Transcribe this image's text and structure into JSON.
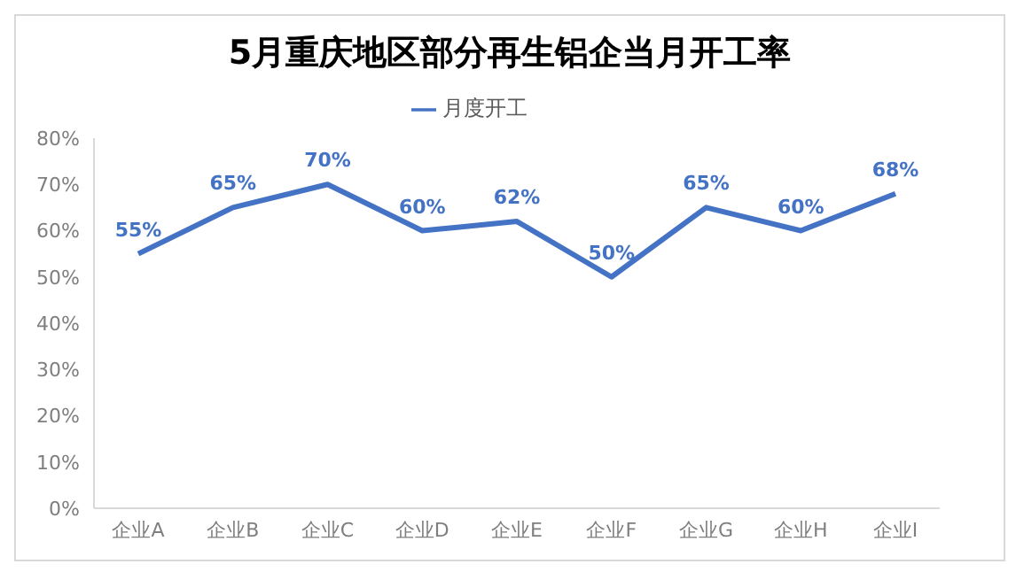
{
  "chart_data": {
    "type": "line",
    "title": "5月重庆地区部分再生铝企当月开工率",
    "categories": [
      "企业A",
      "企业B",
      "企业C",
      "企业D",
      "企业E",
      "企业F",
      "企业G",
      "企业H",
      "企业I"
    ],
    "series": [
      {
        "name": "月度开工",
        "color": "#4472c4",
        "values": [
          55,
          65,
          70,
          60,
          62,
          50,
          65,
          60,
          68
        ],
        "value_labels": [
          "55%",
          "65%",
          "70%",
          "60%",
          "62%",
          "50%",
          "65%",
          "60%",
          "68%"
        ]
      }
    ],
    "ylim": [
      0,
      80
    ],
    "yticks": [
      {
        "value": 0,
        "label": "0%"
      },
      {
        "value": 10,
        "label": "10%"
      },
      {
        "value": 20,
        "label": "20%"
      },
      {
        "value": 30,
        "label": "30%"
      },
      {
        "value": 40,
        "label": "40%"
      },
      {
        "value": 50,
        "label": "50%"
      },
      {
        "value": 60,
        "label": "60%"
      },
      {
        "value": 70,
        "label": "70%"
      },
      {
        "value": 80,
        "label": "80%"
      }
    ],
    "legend": "top",
    "marker": "none",
    "line_style": "solid"
  }
}
